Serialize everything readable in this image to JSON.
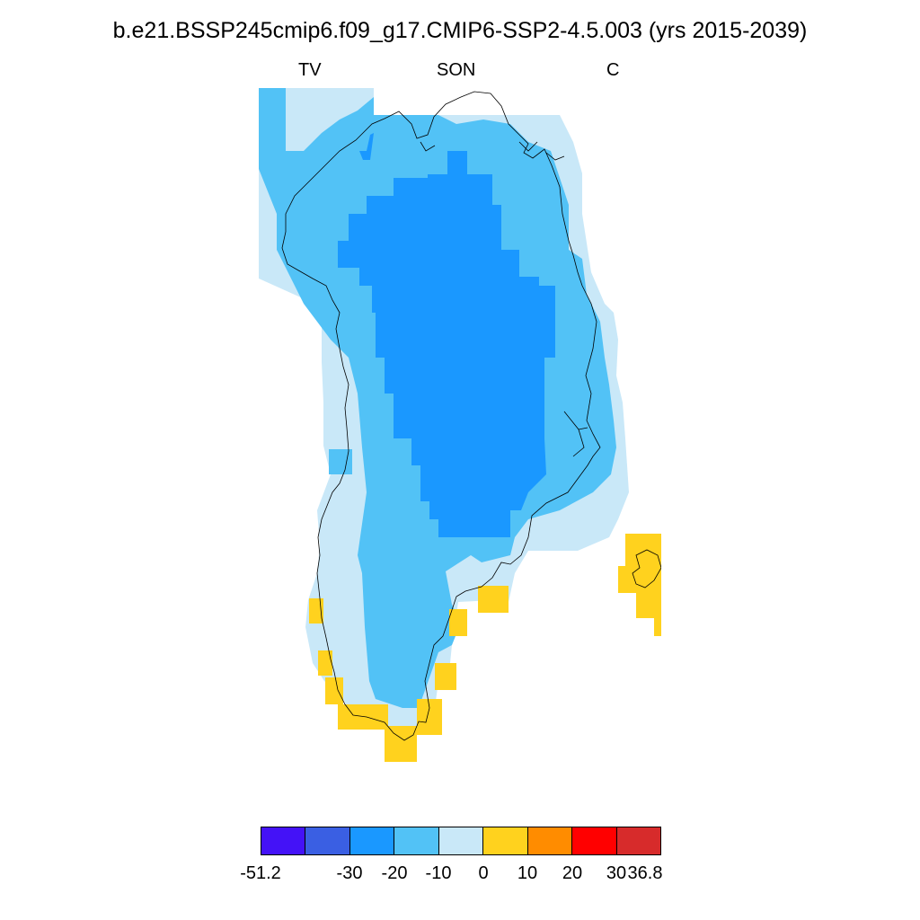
{
  "title": "b.e21.BSSP245cmip6.f09_g17.CMIP6-SSP2-4.5.003 (yrs 2015-2039)",
  "subtitles": {
    "left": "TV",
    "center": "SON",
    "right": "C"
  },
  "colors": {
    "c1": "#4412F7",
    "c2": "#3A5FE3",
    "c3": "#1A98FF",
    "c4": "#52C2F6",
    "c5": "#C9E8F8",
    "c6": "#FFD21E",
    "c7": "#FF8C00",
    "c8": "#FF0000",
    "c9": "#D72B2B",
    "coast": "#000000"
  },
  "colorbar": {
    "colors": [
      "#4412F7",
      "#3A5FE3",
      "#1A98FF",
      "#52C2F6",
      "#C9E8F8",
      "#FFD21E",
      "#FF8C00",
      "#FF0000",
      "#D72B2B"
    ],
    "ticks": [
      "-51.2",
      "-30",
      "-20",
      "-10",
      "0",
      "10",
      "20",
      "30",
      "36.8"
    ]
  }
}
